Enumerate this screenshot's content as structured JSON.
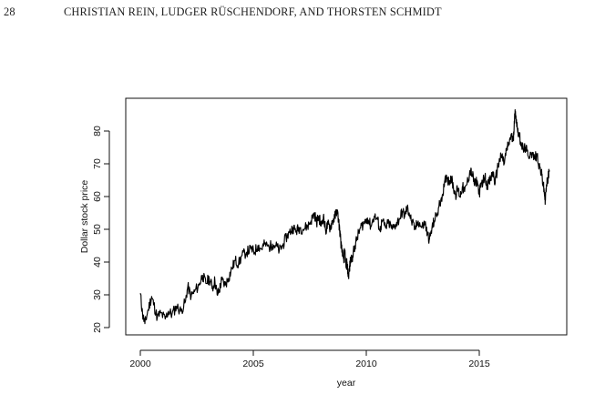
{
  "header": {
    "page_number": "28",
    "running_head": "CHRISTIAN REIN, LUDGER RÜSCHENDORF, AND THORSTEN SCHMIDT"
  },
  "chart_data": {
    "type": "line",
    "title": "",
    "xlabel": "year",
    "ylabel": "Dollar stock price",
    "xlim": [
      2000,
      2018
    ],
    "ylim": [
      20,
      85
    ],
    "xticks": [
      2000,
      2005,
      2010,
      2015
    ],
    "yticks": [
      20,
      30,
      40,
      50,
      60,
      70,
      80
    ],
    "grid": false,
    "series": [
      {
        "points": [
          [
            2000.0,
            30.5
          ],
          [
            2000.1,
            24.0
          ],
          [
            2000.2,
            21.2
          ],
          [
            2000.35,
            25.5
          ],
          [
            2000.5,
            29.5
          ],
          [
            2000.6,
            27.0
          ],
          [
            2000.75,
            23.0
          ],
          [
            2000.9,
            24.5
          ],
          [
            2001.1,
            22.6
          ],
          [
            2001.25,
            25.0
          ],
          [
            2001.4,
            24.0
          ],
          [
            2001.6,
            26.5
          ],
          [
            2001.8,
            25.0
          ],
          [
            2002.0,
            28.0
          ],
          [
            2002.1,
            32.5
          ],
          [
            2002.25,
            29.5
          ],
          [
            2002.4,
            31.0
          ],
          [
            2002.6,
            33.0
          ],
          [
            2002.75,
            36.0
          ],
          [
            2002.9,
            33.5
          ],
          [
            2003.05,
            35.0
          ],
          [
            2003.2,
            32.0
          ],
          [
            2003.3,
            34.5
          ],
          [
            2003.4,
            30.0
          ],
          [
            2003.5,
            31.5
          ],
          [
            2003.6,
            34.5
          ],
          [
            2003.75,
            33.0
          ],
          [
            2003.9,
            35.0
          ],
          [
            2004.05,
            38.0
          ],
          [
            2004.2,
            40.5
          ],
          [
            2004.35,
            39.5
          ],
          [
            2004.5,
            42.0
          ],
          [
            2004.7,
            43.0
          ],
          [
            2004.9,
            44.0
          ],
          [
            2005.05,
            43.0
          ],
          [
            2005.2,
            45.0
          ],
          [
            2005.35,
            44.0
          ],
          [
            2005.5,
            45.5
          ],
          [
            2005.7,
            44.5
          ],
          [
            2005.85,
            45.5
          ],
          [
            2006.0,
            45.0
          ],
          [
            2006.15,
            43.5
          ],
          [
            2006.3,
            45.0
          ],
          [
            2006.45,
            47.5
          ],
          [
            2006.6,
            49.0
          ],
          [
            2006.75,
            50.5
          ],
          [
            2006.9,
            49.5
          ],
          [
            2007.05,
            50.5
          ],
          [
            2007.2,
            50.0
          ],
          [
            2007.4,
            51.0
          ],
          [
            2007.55,
            52.5
          ],
          [
            2007.7,
            55.0
          ],
          [
            2007.8,
            52.0
          ],
          [
            2007.9,
            54.0
          ],
          [
            2008.0,
            51.0
          ],
          [
            2008.1,
            54.0
          ],
          [
            2008.2,
            49.5
          ],
          [
            2008.3,
            51.5
          ],
          [
            2008.4,
            50.5
          ],
          [
            2008.5,
            52.5
          ],
          [
            2008.6,
            53.5
          ],
          [
            2008.7,
            56.0
          ],
          [
            2008.78,
            52.5
          ],
          [
            2008.85,
            48.0
          ],
          [
            2008.92,
            43.0
          ],
          [
            2009.0,
            41.0
          ],
          [
            2009.05,
            43.5
          ],
          [
            2009.1,
            38.5
          ],
          [
            2009.15,
            40.0
          ],
          [
            2009.2,
            35.5
          ],
          [
            2009.25,
            37.5
          ],
          [
            2009.3,
            40.5
          ],
          [
            2009.4,
            42.0
          ],
          [
            2009.5,
            45.0
          ],
          [
            2009.6,
            47.5
          ],
          [
            2009.75,
            50.5
          ],
          [
            2009.9,
            52.0
          ],
          [
            2010.05,
            53.5
          ],
          [
            2010.2,
            51.0
          ],
          [
            2010.35,
            54.0
          ],
          [
            2010.5,
            53.0
          ],
          [
            2010.6,
            49.5
          ],
          [
            2010.7,
            52.5
          ],
          [
            2010.85,
            50.5
          ],
          [
            2011.0,
            52.0
          ],
          [
            2011.15,
            50.0
          ],
          [
            2011.3,
            51.5
          ],
          [
            2011.45,
            53.0
          ],
          [
            2011.6,
            55.5
          ],
          [
            2011.7,
            54.0
          ],
          [
            2011.8,
            56.5
          ],
          [
            2011.9,
            55.0
          ],
          [
            2012.0,
            52.5
          ],
          [
            2012.15,
            50.0
          ],
          [
            2012.3,
            52.5
          ],
          [
            2012.45,
            50.5
          ],
          [
            2012.6,
            52.0
          ],
          [
            2012.7,
            48.5
          ],
          [
            2012.8,
            47.0
          ],
          [
            2012.9,
            50.0
          ],
          [
            2013.0,
            52.5
          ],
          [
            2013.15,
            55.0
          ],
          [
            2013.3,
            59.0
          ],
          [
            2013.45,
            63.0
          ],
          [
            2013.55,
            66.5
          ],
          [
            2013.65,
            64.5
          ],
          [
            2013.75,
            66.0
          ],
          [
            2013.85,
            63.0
          ],
          [
            2013.95,
            60.5
          ],
          [
            2014.05,
            62.5
          ],
          [
            2014.15,
            60.0
          ],
          [
            2014.25,
            63.0
          ],
          [
            2014.35,
            61.5
          ],
          [
            2014.5,
            65.0
          ],
          [
            2014.6,
            68.0
          ],
          [
            2014.7,
            66.5
          ],
          [
            2014.8,
            63.5
          ],
          [
            2014.9,
            65.0
          ],
          [
            2015.0,
            61.0
          ],
          [
            2015.1,
            64.0
          ],
          [
            2015.25,
            66.0
          ],
          [
            2015.35,
            63.5
          ],
          [
            2015.5,
            65.0
          ],
          [
            2015.6,
            67.5
          ],
          [
            2015.7,
            64.0
          ],
          [
            2015.8,
            68.5
          ],
          [
            2015.9,
            71.0
          ],
          [
            2016.0,
            72.5
          ],
          [
            2016.1,
            70.0
          ],
          [
            2016.2,
            74.0
          ],
          [
            2016.3,
            76.0
          ],
          [
            2016.4,
            78.5
          ],
          [
            2016.5,
            77.0
          ],
          [
            2016.55,
            83.0
          ],
          [
            2016.6,
            86.0
          ],
          [
            2016.68,
            81.0
          ],
          [
            2016.75,
            79.0
          ],
          [
            2016.85,
            76.5
          ],
          [
            2016.95,
            74.0
          ],
          [
            2017.05,
            75.0
          ],
          [
            2017.15,
            72.5
          ],
          [
            2017.3,
            73.5
          ],
          [
            2017.45,
            71.5
          ],
          [
            2017.55,
            73.0
          ],
          [
            2017.65,
            69.5
          ],
          [
            2017.75,
            67.0
          ],
          [
            2017.82,
            64.0
          ],
          [
            2017.88,
            61.0
          ],
          [
            2017.92,
            59.0
          ],
          [
            2017.98,
            63.5
          ],
          [
            2018.05,
            66.0
          ],
          [
            2018.1,
            68.0
          ]
        ]
      }
    ]
  }
}
